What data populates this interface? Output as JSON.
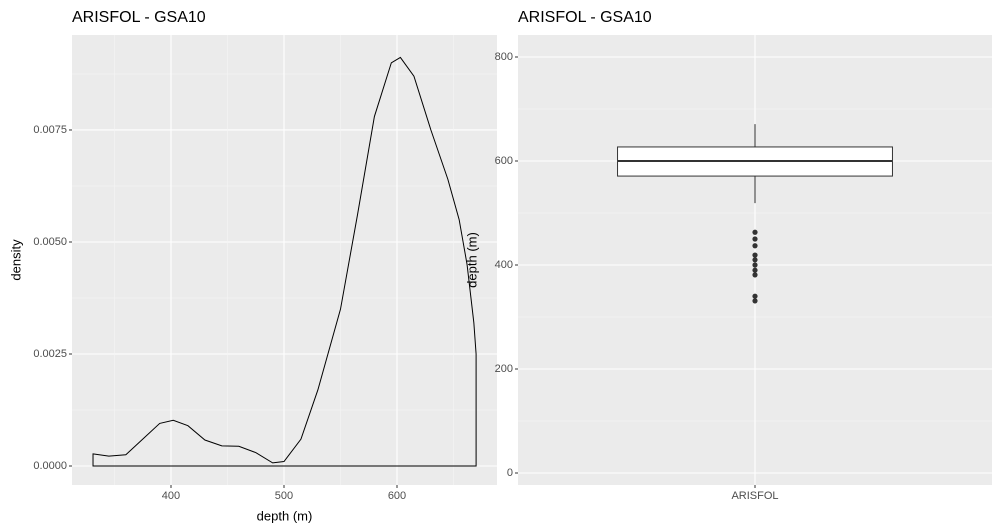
{
  "chart_data": [
    {
      "type": "density",
      "title": "ARISFOL - GSA10",
      "x_label": "depth (m)",
      "y_label": "density",
      "x": [
        331,
        345,
        360,
        375,
        390,
        402,
        415,
        430,
        445,
        460,
        475,
        490,
        500,
        515,
        530,
        550,
        565,
        580,
        595,
        603,
        615,
        630,
        645,
        655,
        662,
        668,
        670
      ],
      "y": [
        0.00027,
        0.00022,
        0.00025,
        0.0006,
        0.00095,
        0.00102,
        0.0009,
        0.00058,
        0.00045,
        0.00044,
        0.0003,
        7e-05,
        0.0001,
        0.0006,
        0.0017,
        0.0035,
        0.0056,
        0.0078,
        0.009,
        0.00912,
        0.0087,
        0.0075,
        0.0064,
        0.0055,
        0.0045,
        0.0032,
        0.0025
      ],
      "color": "#000000",
      "xlim": [
        312.4,
        688.5
      ],
      "xticks": [
        400,
        500,
        600
      ],
      "ylim": [
        -0.000424,
        0.00962
      ],
      "yticks": [
        {
          "value": 0,
          "label": "0.0000"
        },
        0.0025,
        {
          "value": 0.005,
          "label": "0.0050"
        },
        0.0075
      ],
      "grid": true
    },
    {
      "type": "box",
      "title": "ARISFOL - GSA10",
      "y_label": "depth (m)",
      "categories": [
        "ARISFOL"
      ],
      "boxes": [
        {
          "low": 519,
          "q1": 571,
          "median": 600,
          "q3": 627,
          "high": 671,
          "outliers": [
            463,
            450,
            437,
            419,
            410,
            400,
            390,
            381,
            340,
            331
          ]
        }
      ],
      "ylim": [
        -23.1,
        842.3
      ],
      "yticks": [
        0,
        200,
        400,
        600,
        800
      ],
      "grid": true
    }
  ]
}
